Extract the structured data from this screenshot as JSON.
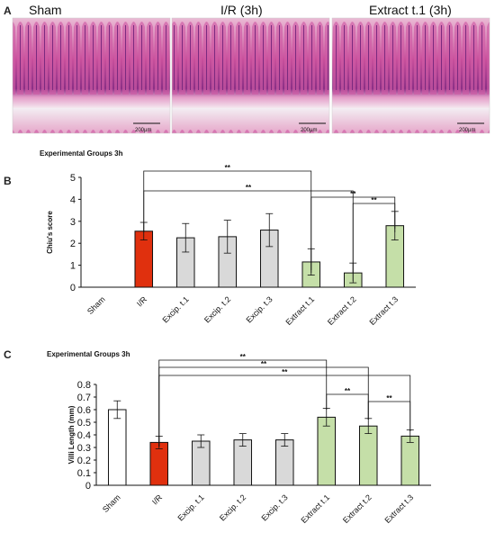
{
  "panels": {
    "a_letter": "A",
    "b_letter": "B",
    "c_letter": "C"
  },
  "micrographs": [
    {
      "title": "Sham",
      "scale": "200µm"
    },
    {
      "title": "I/R (3h)",
      "scale": "200µm"
    },
    {
      "title": "Extract t.1 (3h)",
      "scale": "200µm"
    }
  ],
  "chart_data": [
    {
      "type": "bar",
      "title": "Experimental  Groups 3h",
      "ylabel": "Chiu's score",
      "xlabel": "",
      "ylim": [
        0,
        5
      ],
      "yticks": [
        0,
        1,
        2,
        3,
        4,
        5
      ],
      "grid": false,
      "categories": [
        "Sham",
        "I/R",
        "Excip. t.1",
        "Excip. t.2",
        "Excip. t.3",
        "Extract t.1",
        "Extract t.2",
        "Extract t.3"
      ],
      "values": [
        0,
        2.55,
        2.25,
        2.3,
        2.6,
        1.15,
        0.65,
        2.8
      ],
      "errors": [
        0,
        0.4,
        0.65,
        0.75,
        0.75,
        0.6,
        0.45,
        0.65
      ],
      "bar_colors": [
        "#ffffff",
        "#e0300e",
        "#d9d9d9",
        "#d9d9d9",
        "#d9d9d9",
        "#c5dfa8",
        "#c5dfa8",
        "#c5dfa8"
      ],
      "significance": [
        {
          "from": "I/R",
          "to": "Extract t.1",
          "label": "**"
        },
        {
          "from": "I/R",
          "to": "Extract t.2",
          "label": "**"
        },
        {
          "from": "Extract t.1",
          "to": "Extract t.3",
          "label": "**"
        },
        {
          "from": "Extract t.2",
          "to": "Extract t.3",
          "label": "**"
        }
      ]
    },
    {
      "type": "bar",
      "title": "Experimental  Groups 3h",
      "ylabel": "Villi Length  (mm)",
      "xlabel": "",
      "ylim": [
        0,
        0.8
      ],
      "yticks": [
        "0",
        "0.1",
        "0.2",
        "0.3",
        "0.4",
        "0.5",
        "0.6",
        "0.7",
        "0.8"
      ],
      "grid": false,
      "categories": [
        "Sham",
        "I/R",
        "Excip. t.1",
        "Excip. t.2",
        "Excip. t.3",
        "Extract t.1",
        "Extract t.2",
        "Extract t.3"
      ],
      "values": [
        0.6,
        0.34,
        0.35,
        0.36,
        0.36,
        0.54,
        0.47,
        0.39
      ],
      "errors": [
        0.07,
        0.05,
        0.05,
        0.05,
        0.05,
        0.07,
        0.06,
        0.05
      ],
      "bar_colors": [
        "#ffffff",
        "#e0300e",
        "#d9d9d9",
        "#d9d9d9",
        "#d9d9d9",
        "#c5dfa8",
        "#c5dfa8",
        "#c5dfa8"
      ],
      "significance": [
        {
          "from": "I/R",
          "to": "Extract t.1",
          "label": "**"
        },
        {
          "from": "I/R",
          "to": "Extract t.2",
          "label": "**"
        },
        {
          "from": "I/R",
          "to": "Extract t.3",
          "label": "**"
        },
        {
          "from": "Extract t.1",
          "to": "Extract t.2",
          "label": "**"
        },
        {
          "from": "Extract t.2",
          "to": "Extract t.3",
          "label": "**"
        }
      ]
    }
  ]
}
